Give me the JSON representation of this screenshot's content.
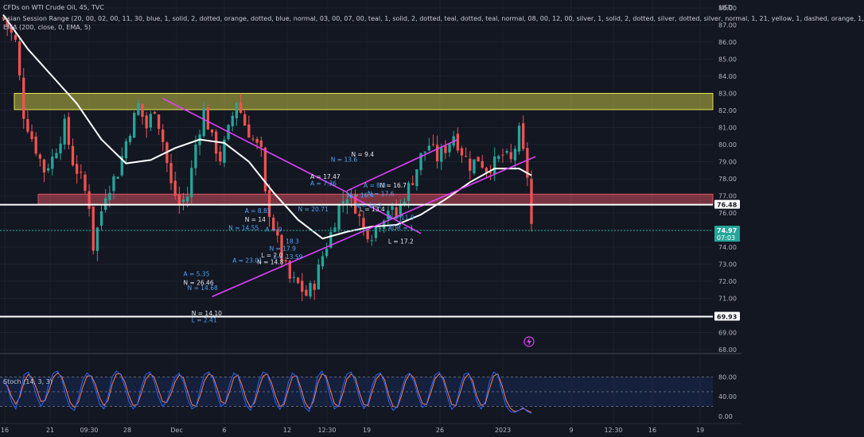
{
  "header": {
    "title": "CFDs on WTI Crude Oil, 45, TVC",
    "indicator1": "Asian Session Range (20, 00, 02, 00, 11, 30, blue, 1, solid, 2, dotted, orange, dotted, blue, normal, 03, 00, 07, 00, teal, 1, solid, 2, dotted, teal, dotted, teal, normal, 08, 00, 12, 00, silver, 1, solid, 2, dotted, silver, dotted, silver, normal, 1, 21, yellow, 1, dashed, orange, 1,",
    "indicator2": "EMA (200, close, 0, EMA, 5)"
  },
  "price_axis": {
    "currency": "USD",
    "ticks": [
      "88.00",
      "87.00",
      "86.00",
      "85.00",
      "84.00",
      "83.00",
      "82.00",
      "81.00",
      "80.00",
      "79.00",
      "78.00",
      "77.00",
      "76.00",
      "75.00",
      "74.00",
      "73.00",
      "72.00",
      "71.00",
      "70.00",
      "69.00",
      "68.00"
    ],
    "tags": [
      {
        "value": 76.48,
        "label": "76.48",
        "bg": "#ffffff",
        "fg": "#131722"
      },
      {
        "value": 74.97,
        "label": "74.97",
        "sub": "07:03",
        "bg": "#26a69a",
        "fg": "#ffffff"
      },
      {
        "value": 69.93,
        "label": "69.93",
        "bg": "#ffffff",
        "fg": "#131722"
      }
    ]
  },
  "time_axis": {
    "labels": [
      "16",
      "21",
      "09:30",
      "28",
      "Dec",
      "6",
      "12",
      "12:30",
      "19",
      "26",
      "2023",
      "9",
      "12:30",
      "16",
      "19"
    ]
  },
  "stoch": {
    "title": "Stoch (14, 3, 3)",
    "ticks": [
      "80.00",
      "40.00",
      "0.00"
    ],
    "levels": [
      80,
      50,
      20
    ]
  },
  "chart_data": {
    "type": "candlestick",
    "symbol": "CFDs on WTI Crude Oil",
    "interval": "45",
    "y_range": [
      68,
      88
    ],
    "close_path": [
      [
        0,
        87.4
      ],
      [
        3,
        86.0
      ],
      [
        5,
        81.8
      ],
      [
        7,
        80.4
      ],
      [
        10,
        78.5
      ],
      [
        12,
        79.2
      ],
      [
        15,
        81.1
      ],
      [
        17,
        79.0
      ],
      [
        19,
        78.0
      ],
      [
        21,
        76.5
      ],
      [
        22,
        74.0
      ],
      [
        25,
        77.2
      ],
      [
        28,
        78.4
      ],
      [
        30,
        80.2
      ],
      [
        33,
        82.3
      ],
      [
        35,
        81.0
      ],
      [
        37,
        82.2
      ],
      [
        39,
        80.2
      ],
      [
        41,
        77.6
      ],
      [
        43,
        76.5
      ],
      [
        45,
        77.0
      ],
      [
        47,
        80.0
      ],
      [
        49,
        82.0
      ],
      [
        51,
        80.3
      ],
      [
        53,
        79.2
      ],
      [
        55,
        80.8
      ],
      [
        57,
        82.6
      ],
      [
        59,
        81.2
      ],
      [
        61,
        80.3
      ],
      [
        63,
        79.5
      ],
      [
        64,
        77.0
      ],
      [
        66,
        75.2
      ],
      [
        68,
        73.4
      ],
      [
        70,
        72.1
      ],
      [
        72,
        71.8
      ],
      [
        74,
        71.2
      ],
      [
        76,
        71.9
      ],
      [
        78,
        73.5
      ],
      [
        80,
        74.8
      ],
      [
        82,
        76.4
      ],
      [
        84,
        77.1
      ],
      [
        86,
        76.4
      ],
      [
        88,
        75.0
      ],
      [
        90,
        74.8
      ],
      [
        92,
        75.5
      ],
      [
        94,
        76.3
      ],
      [
        96,
        75.8
      ],
      [
        98,
        77.0
      ],
      [
        100,
        78.0
      ],
      [
        102,
        79.3
      ],
      [
        104,
        80.0
      ],
      [
        106,
        79.2
      ],
      [
        108,
        79.8
      ],
      [
        110,
        80.6
      ],
      [
        112,
        79.6
      ],
      [
        114,
        78.8
      ],
      [
        116,
        79.2
      ],
      [
        118,
        78.6
      ],
      [
        120,
        78.9
      ],
      [
        122,
        79.4
      ],
      [
        124,
        79.0
      ],
      [
        126,
        80.7
      ],
      [
        128,
        78.2
      ],
      [
        129,
        75.3
      ]
    ],
    "ema_200": [
      [
        0,
        87.6
      ],
      [
        6,
        85.6
      ],
      [
        12,
        84.0
      ],
      [
        18,
        82.4
      ],
      [
        24,
        80.3
      ],
      [
        30,
        78.9
      ],
      [
        36,
        79.1
      ],
      [
        42,
        79.8
      ],
      [
        48,
        80.3
      ],
      [
        54,
        80.1
      ],
      [
        60,
        79.0
      ],
      [
        66,
        77.2
      ],
      [
        72,
        75.6
      ],
      [
        78,
        74.5
      ],
      [
        84,
        74.9
      ],
      [
        90,
        75.2
      ],
      [
        96,
        75.3
      ],
      [
        102,
        75.9
      ],
      [
        108,
        76.8
      ],
      [
        114,
        77.8
      ],
      [
        120,
        78.6
      ],
      [
        126,
        78.6
      ],
      [
        129,
        78.2
      ]
    ],
    "zones": [
      {
        "name": "supply-zone",
        "from": 82.05,
        "to": 83.0,
        "color": "#e6e34c"
      },
      {
        "name": "resistance-zone",
        "from": 76.48,
        "to": 77.1,
        "color": "#e05262"
      }
    ],
    "horizontal_lines": [
      76.48,
      69.93
    ],
    "trendlines": [
      {
        "from": [
          39,
          82.7
        ],
        "to": [
          84,
          77.2
        ]
      },
      {
        "from": [
          84,
          77.3
        ],
        "to": [
          111,
          80.3
        ]
      },
      {
        "from": [
          51,
          71.1
        ],
        "to": [
          130,
          79.3
        ]
      },
      {
        "from": [
          84,
          77.1
        ],
        "to": [
          102,
          74.8
        ]
      }
    ],
    "annotations": [
      {
        "text": "A = 5.35",
        "x": 44,
        "y": 72.3
      },
      {
        "text": "N = 26.46",
        "x": 44,
        "y": 71.8
      },
      {
        "text": "N = 14.68",
        "x": 45,
        "y": 71.5
      },
      {
        "text": "A = 23.01",
        "x": 56,
        "y": 73.1
      },
      {
        "text": "N = 14.10",
        "x": 46,
        "y": 70.0
      },
      {
        "text": "L = 2.41",
        "x": 46,
        "y": 69.6
      },
      {
        "text": "A = 8.85",
        "x": 59,
        "y": 76.0
      },
      {
        "text": "N = 14",
        "x": 59,
        "y": 75.5
      },
      {
        "text": "N = 14.55",
        "x": 55,
        "y": 75.0
      },
      {
        "text": "A = 9",
        "x": 64,
        "y": 74.9
      },
      {
        "text": "L = 2.0",
        "x": 63,
        "y": 73.4
      },
      {
        "text": "L = 13.59",
        "x": 66,
        "y": 73.3
      },
      {
        "text": "N = 17.9",
        "x": 65,
        "y": 73.8
      },
      {
        "text": "N = 14.8",
        "x": 62,
        "y": 73.0
      },
      {
        "text": "18.3",
        "x": 69,
        "y": 74.2
      },
      {
        "text": "N = 20.71",
        "x": 72,
        "y": 76.1
      },
      {
        "text": "A = 17.47",
        "x": 75,
        "y": 78.0
      },
      {
        "text": "A = 7.36",
        "x": 75,
        "y": 77.6
      },
      {
        "text": "N = 13.6",
        "x": 80,
        "y": 79.0
      },
      {
        "text": "N = 9.4",
        "x": 85,
        "y": 79.3
      },
      {
        "text": "N = 16.4",
        "x": 84,
        "y": 76.9
      },
      {
        "text": "N = 14.2",
        "x": 86,
        "y": 76.3
      },
      {
        "text": "L = 13.4",
        "x": 87,
        "y": 76.1
      },
      {
        "text": "A = 8.3",
        "x": 88,
        "y": 77.5
      },
      {
        "text": "N = 17.6",
        "x": 89,
        "y": 77.0
      },
      {
        "text": "N = 16.7",
        "x": 92,
        "y": 77.5
      },
      {
        "text": "A = 11.9",
        "x": 94,
        "y": 75.6
      },
      {
        "text": "ADR = 1",
        "x": 94,
        "y": 75.0
      },
      {
        "text": "L = 17.2",
        "x": 94,
        "y": 74.2
      }
    ]
  },
  "stoch_data": {
    "k": [
      72,
      60,
      30,
      15,
      45,
      85,
      90,
      70,
      40,
      20,
      35,
      70,
      88,
      92,
      75,
      40,
      18,
      12,
      40,
      75,
      88,
      80,
      55,
      25,
      15,
      40,
      80,
      92,
      85,
      60,
      30,
      15,
      25,
      60,
      85,
      90,
      72,
      40,
      20,
      30,
      55,
      80,
      88,
      70,
      35,
      15,
      20,
      55,
      85,
      90,
      78,
      45,
      20,
      28,
      65,
      88,
      82,
      50,
      22,
      12,
      35,
      72,
      90,
      86,
      58,
      28,
      14,
      30,
      68,
      88,
      80,
      46,
      18,
      10,
      38,
      80,
      92,
      76,
      40,
      15,
      22,
      60,
      86,
      90,
      70,
      36,
      16,
      25,
      62,
      84,
      88,
      66,
      30,
      12,
      20,
      52,
      82,
      88,
      70,
      40,
      18,
      26,
      58,
      84,
      90,
      72,
      38,
      14,
      24,
      60,
      86,
      88,
      64,
      30,
      15,
      30,
      70,
      90,
      84,
      50,
      20,
      10,
      8,
      12,
      18,
      10,
      6
    ],
    "d": [
      70,
      62,
      40,
      25,
      40,
      70,
      85,
      78,
      55,
      30,
      32,
      55,
      80,
      88,
      80,
      55,
      28,
      18,
      30,
      60,
      82,
      82,
      65,
      38,
      22,
      32,
      65,
      86,
      86,
      70,
      42,
      22,
      24,
      48,
      75,
      86,
      80,
      55,
      30,
      28,
      45,
      70,
      84,
      78,
      50,
      24,
      20,
      42,
      72,
      86,
      82,
      58,
      30,
      26,
      50,
      78,
      84,
      62,
      34,
      18,
      28,
      58,
      82,
      86,
      68,
      40,
      20,
      24,
      54,
      80,
      82,
      58,
      28,
      16,
      30,
      66,
      86,
      82,
      54,
      26,
      20,
      46,
      76,
      86,
      78,
      48,
      24,
      22,
      50,
      76,
      86,
      74,
      42,
      20,
      18,
      42,
      72,
      86,
      78,
      50,
      26,
      24,
      48,
      76,
      86,
      78,
      50,
      24,
      22,
      48,
      76,
      86,
      72,
      40,
      22,
      26,
      56,
      82,
      86,
      62,
      32,
      16,
      10,
      12,
      16,
      12,
      8
    ]
  },
  "colors": {
    "background": "#131722",
    "grid": "#1e222d",
    "up": "#26a69a",
    "down": "#ef5350",
    "ema": "#ffffff",
    "trend": "#e040fb",
    "stoch_k": "#2962ff",
    "stoch_d": "#f57c52",
    "annotation_blue": "#4fa3f7",
    "annotation_white": "#e6e8ee"
  }
}
